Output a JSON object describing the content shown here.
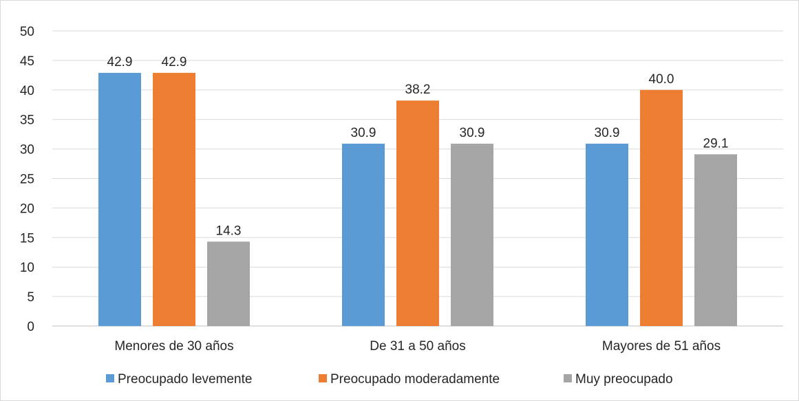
{
  "chart_data": {
    "type": "bar",
    "categories": [
      "Menores de 30 años",
      "De 31 a 50 años",
      "Mayores de 51 años"
    ],
    "series": [
      {
        "name": "Preocupado levemente",
        "color": "#5b9bd5",
        "values": [
          42.9,
          30.9,
          30.9
        ]
      },
      {
        "name": "Preocupado moderadamente",
        "color": "#ed7d31",
        "values": [
          42.9,
          38.2,
          40.0
        ]
      },
      {
        "name": "Muy preocupado",
        "color": "#a5a5a5",
        "values": [
          14.3,
          30.9,
          29.1
        ]
      }
    ],
    "ylim": [
      0,
      50
    ],
    "ytick_step": 5,
    "value_decimals": 1,
    "grid": true,
    "legend_position": "bottom"
  }
}
